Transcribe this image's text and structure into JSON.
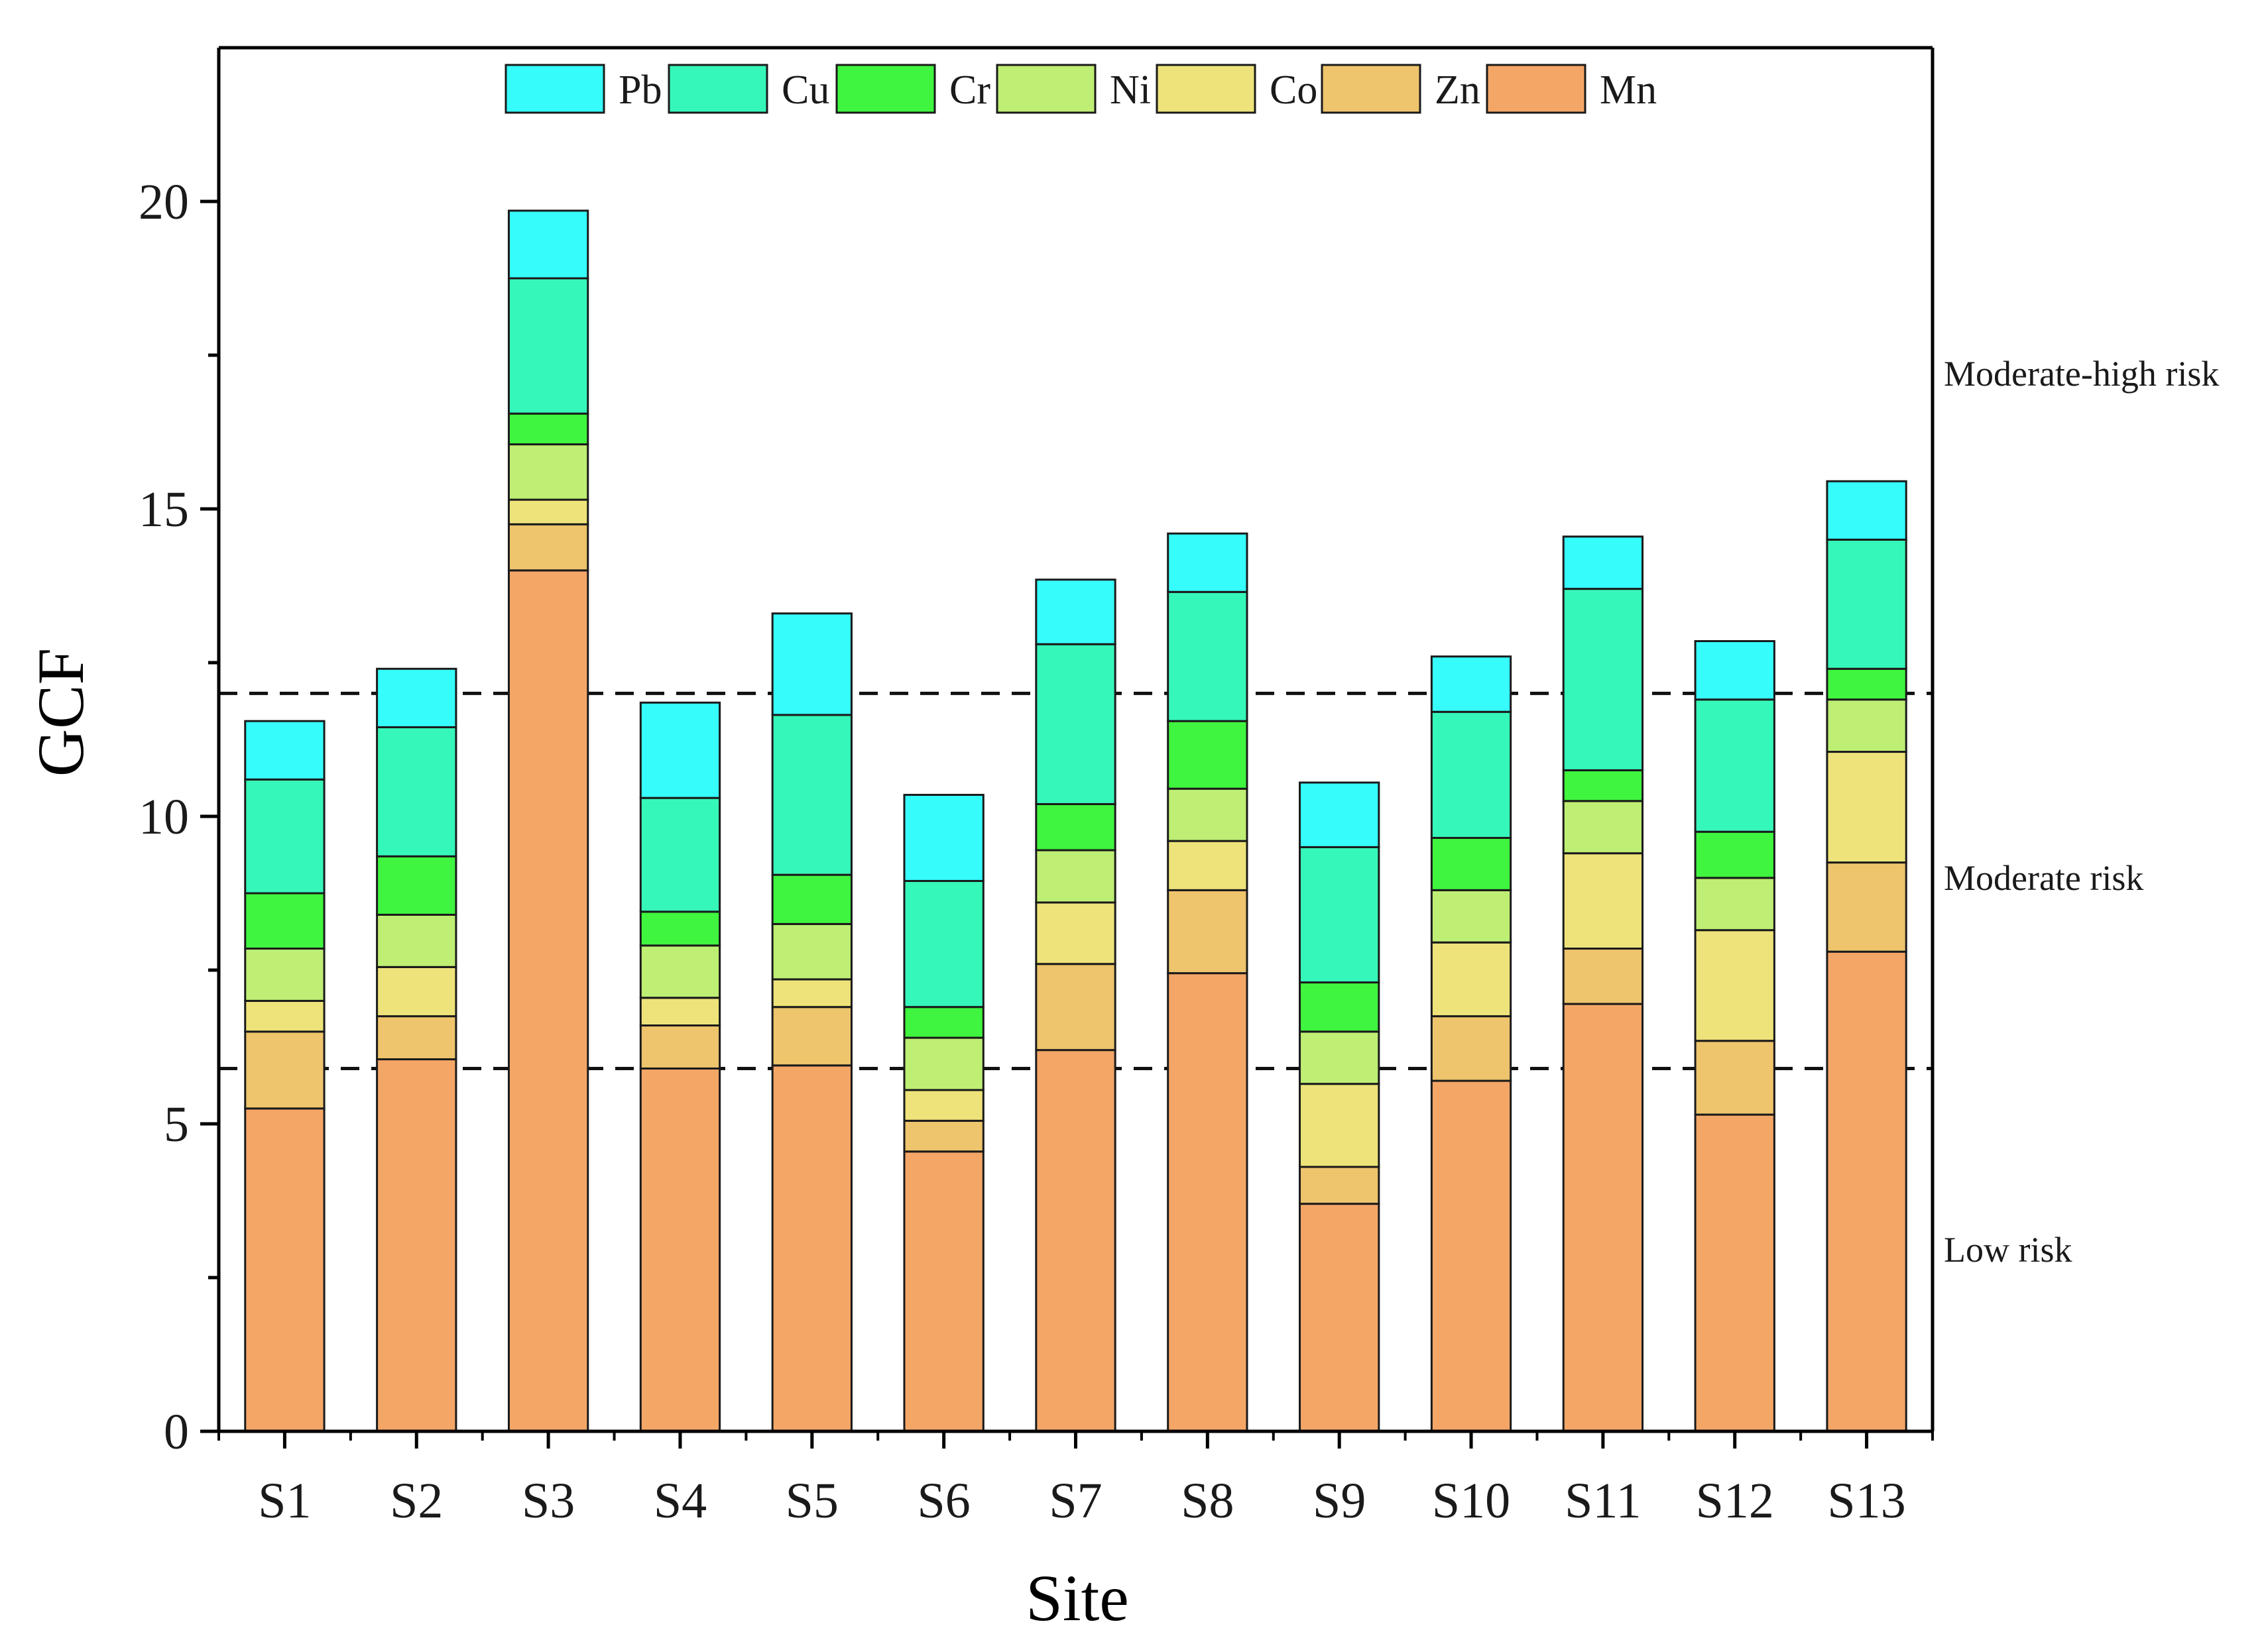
{
  "chart_data": {
    "type": "bar",
    "stacked": true,
    "title": "",
    "xlabel": "Site",
    "ylabel": "GCF",
    "ylim": [
      0,
      22.5
    ],
    "yticks": [
      0,
      5,
      10,
      15,
      20
    ],
    "legend_position": "top-center",
    "categories": [
      "S1",
      "S2",
      "S3",
      "S4",
      "S5",
      "S6",
      "S7",
      "S8",
      "S9",
      "S10",
      "S11",
      "S12",
      "S13"
    ],
    "series": [
      {
        "name": "Mn",
        "color": "#F4A667",
        "values": [
          5.25,
          6.05,
          14.0,
          5.9,
          5.95,
          4.55,
          6.2,
          7.45,
          3.7,
          5.7,
          6.95,
          5.15,
          7.8
        ]
      },
      {
        "name": "Zn",
        "color": "#EEC46C",
        "values": [
          1.25,
          0.7,
          0.75,
          0.7,
          0.95,
          0.5,
          1.4,
          1.35,
          0.6,
          1.05,
          0.9,
          1.2,
          1.45
        ]
      },
      {
        "name": "Co",
        "color": "#EEE37A",
        "values": [
          0.5,
          0.8,
          0.4,
          0.45,
          0.45,
          0.5,
          1.0,
          0.8,
          1.35,
          1.2,
          1.55,
          1.8,
          1.8
        ]
      },
      {
        "name": "Ni",
        "color": "#BEEE74",
        "values": [
          0.85,
          0.85,
          0.9,
          0.85,
          0.9,
          0.85,
          0.85,
          0.85,
          0.85,
          0.85,
          0.85,
          0.85,
          0.85
        ]
      },
      {
        "name": "Cr",
        "color": "#3FF53F",
        "values": [
          0.9,
          0.95,
          0.5,
          0.55,
          0.8,
          0.5,
          0.75,
          1.1,
          0.8,
          0.85,
          0.5,
          0.75,
          0.5
        ]
      },
      {
        "name": "Cu",
        "color": "#36F7BA",
        "values": [
          1.85,
          2.1,
          2.2,
          1.85,
          2.6,
          2.05,
          2.6,
          2.1,
          2.2,
          2.05,
          2.95,
          2.15,
          2.1
        ]
      },
      {
        "name": "Pb",
        "color": "#36FCFC",
        "values": [
          0.95,
          0.95,
          1.1,
          1.55,
          1.65,
          1.4,
          1.05,
          0.95,
          1.05,
          0.9,
          0.85,
          0.95,
          0.95
        ]
      }
    ],
    "legend_order": [
      "Pb",
      "Cu",
      "Cr",
      "Ni",
      "Co",
      "Zn",
      "Mn"
    ],
    "reference_lines": [
      {
        "y": 12.0,
        "style": "dashed"
      },
      {
        "y": 5.9,
        "style": "dashed"
      }
    ],
    "zone_labels": [
      {
        "text": "Moderate-high risk",
        "y": 17.2
      },
      {
        "text": "Moderate risk",
        "y": 9.0
      },
      {
        "text": "Low risk",
        "y": 2.95
      }
    ]
  }
}
